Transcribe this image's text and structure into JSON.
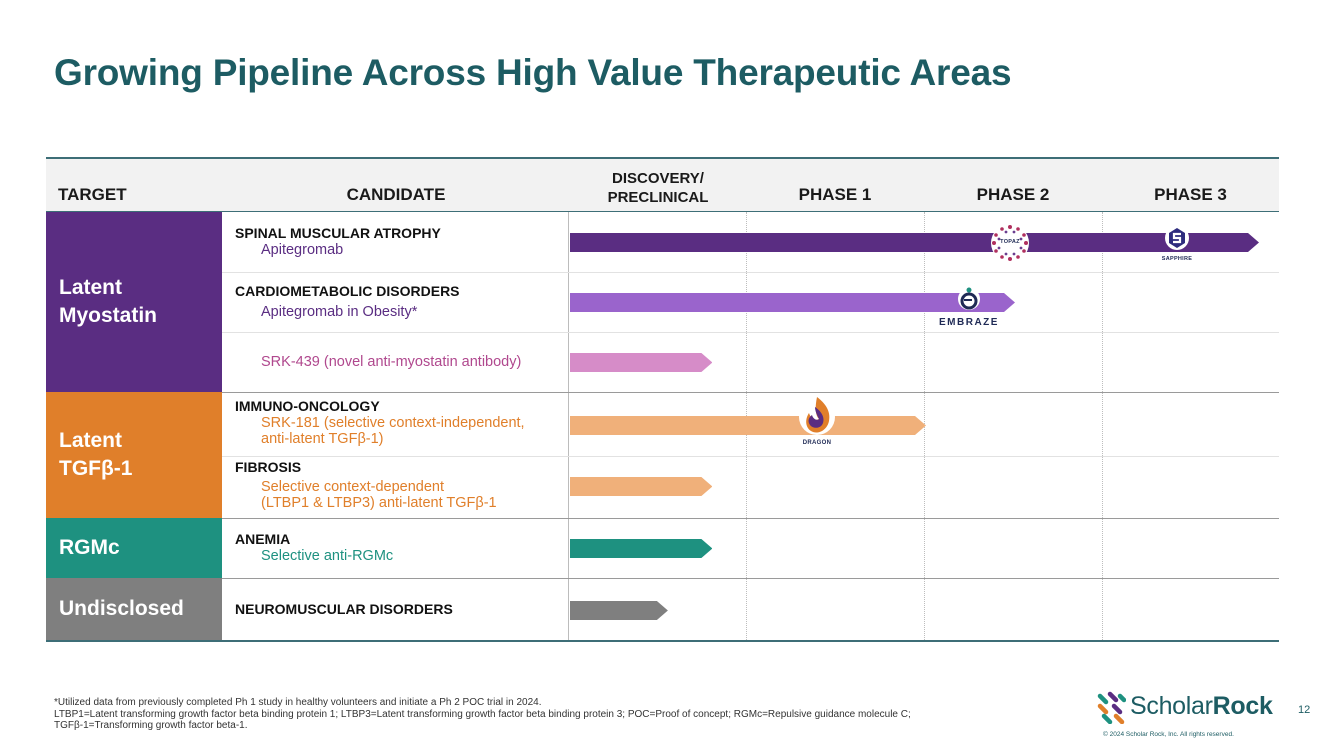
{
  "title": "Growing Pipeline Across High Value Therapeutic Areas",
  "table": {
    "headers": {
      "target": "TARGET",
      "candidate": "CANDIDATE",
      "discovery_line1": "DISCOVERY/",
      "discovery_line2": "PRECLINICAL",
      "phase1": "PHASE 1",
      "phase2": "PHASE 2",
      "phase3": "PHASE 3"
    },
    "targets": {
      "myostatin_line1": "Latent",
      "myostatin_line2": "Myostatin",
      "tgf_line1": "Latent",
      "tgf_line2": "TGFβ-1",
      "rgmc": "RGMc",
      "undisclosed": "Undisclosed"
    },
    "colors": {
      "myostatin": "#5a2d82",
      "tgf": "#e07f2a",
      "rgmc": "#1e9180",
      "undisclosed": "#7f7f7f"
    },
    "rows": [
      {
        "disease": "SPINAL MUSCULAR ATROPHY",
        "drug": "Apitegromab",
        "progress_stage": 4.0
      },
      {
        "disease": "CARDIOMETABOLIC DISORDERS",
        "drug": "Apitegromab in Obesity*",
        "progress_stage": 2.5
      },
      {
        "disease": "",
        "drug": "SRK-439 (novel anti-myostatin antibody)",
        "progress_stage": 0.8
      },
      {
        "disease": "IMMUNO-ONCOLOGY",
        "drug_line1": "SRK-181 (selective context-independent,",
        "drug_line2": "anti-latent TGFβ-1)",
        "progress_stage": 2.0
      },
      {
        "disease": "FIBROSIS",
        "drug_line1": "Selective context-dependent",
        "drug_line2": "(LTBP1 & LTBP3) anti-latent TGFβ-1",
        "progress_stage": 0.8
      },
      {
        "disease": "ANEMIA",
        "drug": "Selective anti-RGMc",
        "progress_stage": 0.8
      },
      {
        "disease": "NEUROMUSCULAR DISORDERS",
        "drug": "",
        "progress_stage": 0.55
      }
    ],
    "trial_logos": {
      "topaz": "TOPAZ",
      "sapphire": "SAPPHIRE",
      "embraze": "EMBRAZE",
      "dragon": "DRAGON"
    }
  },
  "footnote": {
    "line1": "*Utilized data from previously completed Ph 1 study in healthy volunteers and initiate a Ph 2 POC trial in 2024.",
    "line2": "LTBP1=Latent transforming growth factor beta binding protein 1; LTBP3=Latent transforming growth factor beta binding protein 3; POC=Proof of concept; RGMc=Repulsive guidance molecule C;",
    "line3": "TGFβ-1=Transforming growth factor beta-1."
  },
  "brand": {
    "name_light": "Scholar",
    "name_bold": "Rock",
    "copyright": "© 2024 Scholar Rock, Inc. All rights reserved."
  },
  "page_number": "12"
}
